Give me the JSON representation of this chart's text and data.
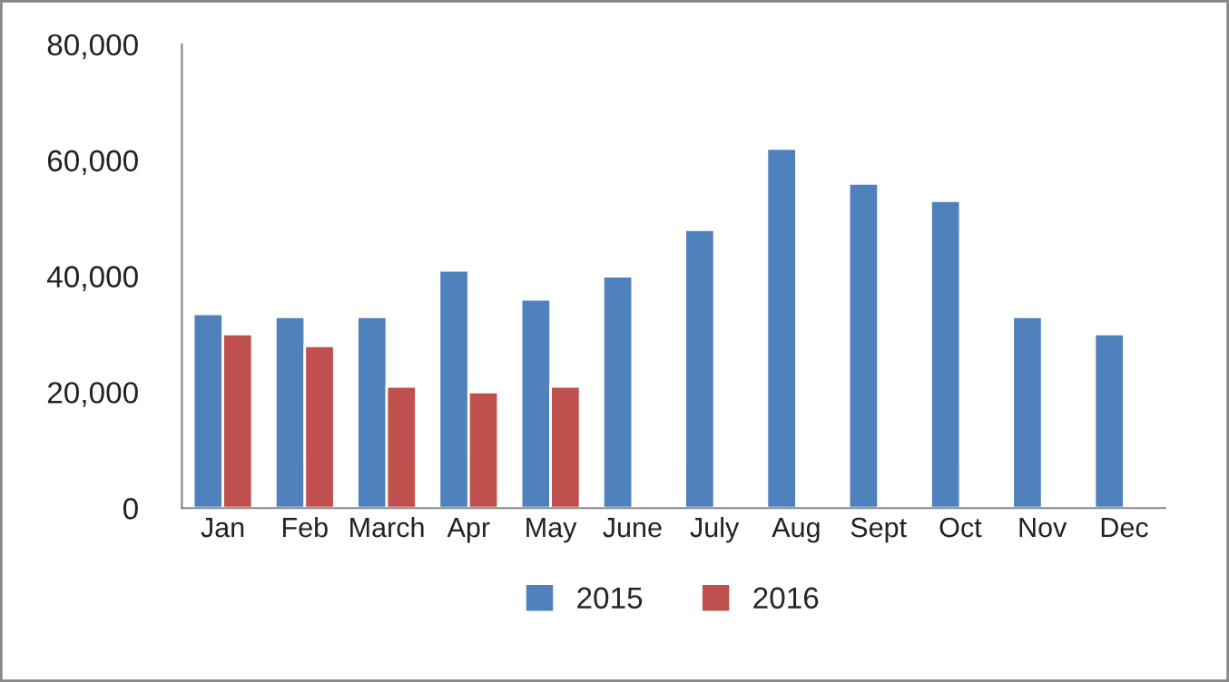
{
  "chart_data": {
    "type": "bar",
    "categories": [
      "Jan",
      "Feb",
      "March",
      "Apr",
      "May",
      "June",
      "July",
      "Aug",
      "Sept",
      "Oct",
      "Nov",
      "Dec"
    ],
    "series": [
      {
        "name": "2015",
        "color": "#4f81bd",
        "values": [
          33500,
          33000,
          33000,
          41000,
          36000,
          40000,
          48000,
          62000,
          56000,
          53000,
          33000,
          30000
        ]
      },
      {
        "name": "2016",
        "color": "#c0504d",
        "values": [
          30000,
          28000,
          21000,
          20000,
          21000,
          null,
          null,
          null,
          null,
          null,
          null,
          null
        ]
      }
    ],
    "ylim": [
      0,
      80000
    ],
    "yticks": [
      {
        "value": 0,
        "label": "0"
      },
      {
        "value": 20000,
        "label": "20,000"
      },
      {
        "value": 40000,
        "label": "40,000"
      },
      {
        "value": 60000,
        "label": "60,000"
      },
      {
        "value": 80000,
        "label": "80,000"
      }
    ],
    "grid": false,
    "legend": "bottom"
  }
}
